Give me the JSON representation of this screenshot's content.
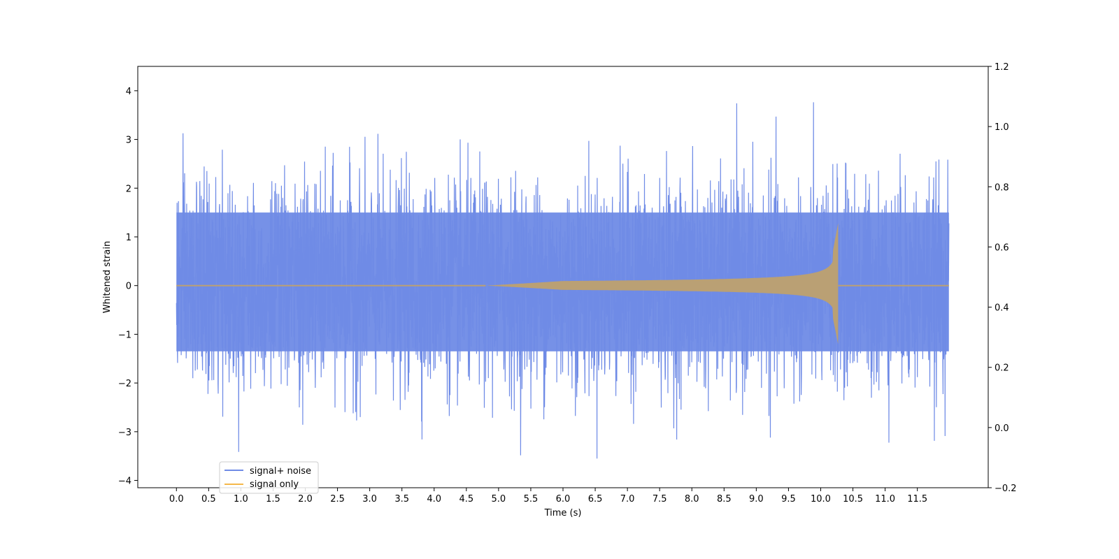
{
  "chart_data": {
    "type": "line",
    "xlabel": "Time (s)",
    "ylabel": "Whitened strain",
    "xlim": [
      -0.6,
      12.6
    ],
    "ylim": [
      -4.15,
      4.5
    ],
    "y2lim": [
      -0.2,
      1.2
    ],
    "x_ticks": [
      "0.0",
      "0.5",
      "1.0",
      "1.5",
      "2.0",
      "2.5",
      "3.0",
      "3.5",
      "4.0",
      "4.5",
      "5.0",
      "5.5",
      "6.0",
      "6.5",
      "7.0",
      "7.5",
      "8.0",
      "8.5",
      "9.0",
      "9.5",
      "10.0",
      "10.5",
      "11.0",
      "11.5"
    ],
    "y_ticks": [
      "−4",
      "−3",
      "−2",
      "−1",
      "0",
      "1",
      "2",
      "3",
      "4"
    ],
    "y2_ticks": [
      "−0.2",
      "0.0",
      "0.2",
      "0.4",
      "0.6",
      "0.8",
      "1.0",
      "1.2"
    ],
    "grid": false,
    "legend_position": "lower-left",
    "series": [
      {
        "name": "signal+ noise",
        "color": "#6f8be6",
        "x_start": 0.0,
        "x_end": 11.99,
        "envelope_top": 1.5,
        "envelope_bottom": -1.35,
        "peak_max": 4.12,
        "peak_min": -3.75
      },
      {
        "name": "signal only",
        "color": "#f5b84a",
        "chirp_start": 4.8,
        "merger_time": 10.27,
        "peak_amplitude": 1.28,
        "trough_amplitude": -1.2
      }
    ],
    "legend": {
      "signal_noise_label": "signal+ noise",
      "signal_only_label": "signal only"
    }
  }
}
